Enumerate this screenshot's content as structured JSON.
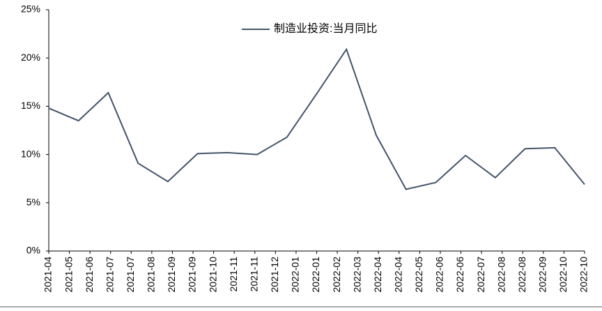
{
  "chart_data": {
    "type": "line",
    "x_labels": [
      "2021-04",
      "2021-05",
      "2021-06",
      "2021-07",
      "2021-07",
      "2021-08",
      "2021-09",
      "2021-09",
      "2021-10",
      "2021-11",
      "2021-11",
      "2021-12",
      "2022-01",
      "2022-01",
      "2022-02",
      "2022-03",
      "2022-04",
      "2022-04",
      "2022-05",
      "2022-06",
      "2022-06",
      "2022-07",
      "2022-08",
      "2022-08",
      "2022-09",
      "2022-10",
      "2022-10"
    ],
    "series": [
      {
        "name": "制造业投资:当月同比",
        "color": "#44546a",
        "values": [
          14.8,
          13.5,
          16.4,
          9.1,
          7.2,
          10.1,
          10.2,
          10.0,
          11.8,
          16.3,
          20.9,
          12.0,
          6.4,
          7.1,
          9.9,
          7.6,
          10.6,
          10.7,
          6.9
        ]
      }
    ],
    "ylim": [
      0,
      25
    ],
    "yticks": [
      {
        "value": 0,
        "label": "0%"
      },
      {
        "value": 5,
        "label": "5%"
      },
      {
        "value": 10,
        "label": "10%"
      },
      {
        "value": 15,
        "label": "15%"
      },
      {
        "value": 20,
        "label": "20%"
      },
      {
        "value": 25,
        "label": "25%"
      }
    ],
    "legend": "top"
  }
}
